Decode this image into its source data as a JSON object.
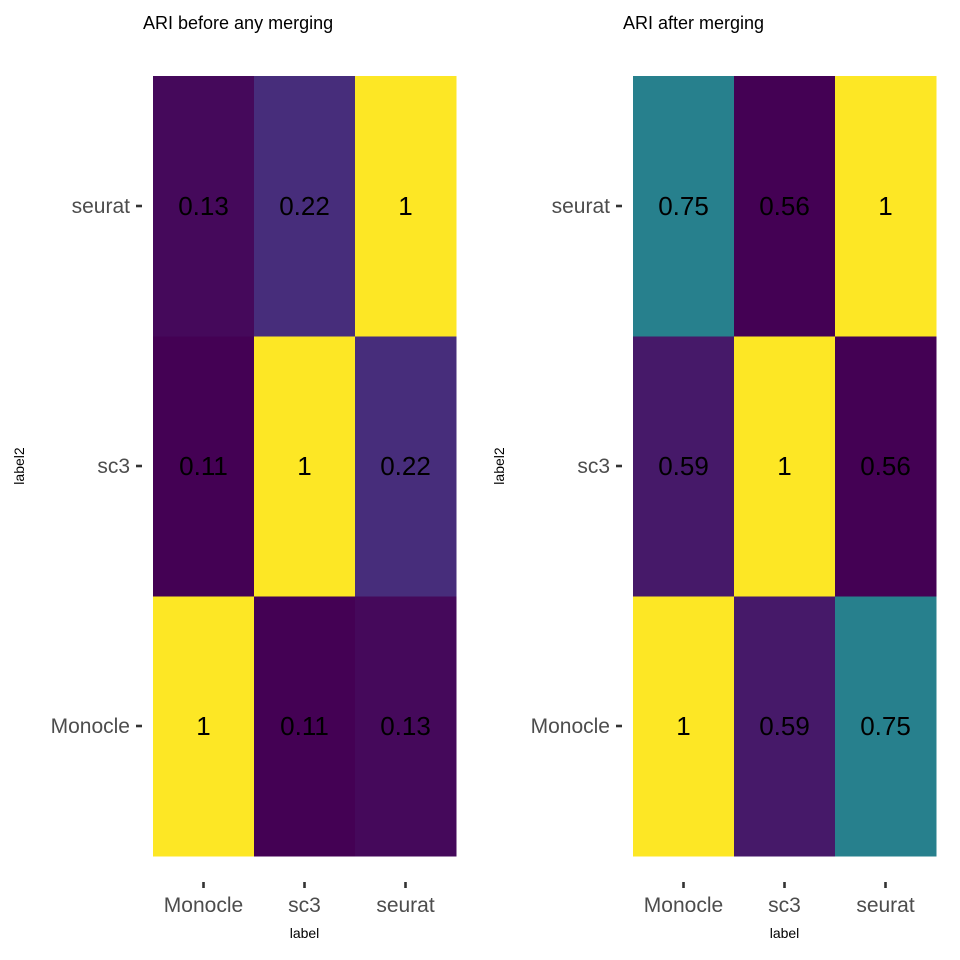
{
  "chart_data": [
    {
      "type": "heatmap",
      "title": "ARI before any merging",
      "xlabel": "label",
      "ylabel": "label2",
      "x_categories": [
        "Monocle",
        "sc3",
        "seurat"
      ],
      "y_categories": [
        "Monocle",
        "sc3",
        "seurat"
      ],
      "values": [
        [
          1,
          0.11,
          0.13
        ],
        [
          0.11,
          1,
          0.22
        ],
        [
          0.13,
          0.22,
          1
        ]
      ],
      "value_labels": [
        [
          "1",
          "0.11",
          "0.13"
        ],
        [
          "0.11",
          "1",
          "0.22"
        ],
        [
          "0.13",
          "0.22",
          "1"
        ]
      ],
      "color_scale": "viridis",
      "legend": "none",
      "grid": false
    },
    {
      "type": "heatmap",
      "title": "ARI after merging",
      "xlabel": "label",
      "ylabel": "label2",
      "x_categories": [
        "Monocle",
        "sc3",
        "seurat"
      ],
      "y_categories": [
        "Monocle",
        "sc3",
        "seurat"
      ],
      "values": [
        [
          1,
          0.59,
          0.75
        ],
        [
          0.59,
          1,
          0.56
        ],
        [
          0.75,
          0.56,
          1
        ]
      ],
      "value_labels": [
        [
          "1",
          "0.59",
          "0.75"
        ],
        [
          "0.59",
          "1",
          "0.56"
        ],
        [
          "0.75",
          "0.56",
          "1"
        ]
      ],
      "color_scale": "viridis",
      "legend": "none",
      "grid": false
    }
  ],
  "colors": {
    "viridis_stops": [
      "#440154",
      "#472d7b",
      "#3b528b",
      "#2c728e",
      "#21918c",
      "#28ae80",
      "#5ec962",
      "#addc30",
      "#fde725"
    ]
  }
}
